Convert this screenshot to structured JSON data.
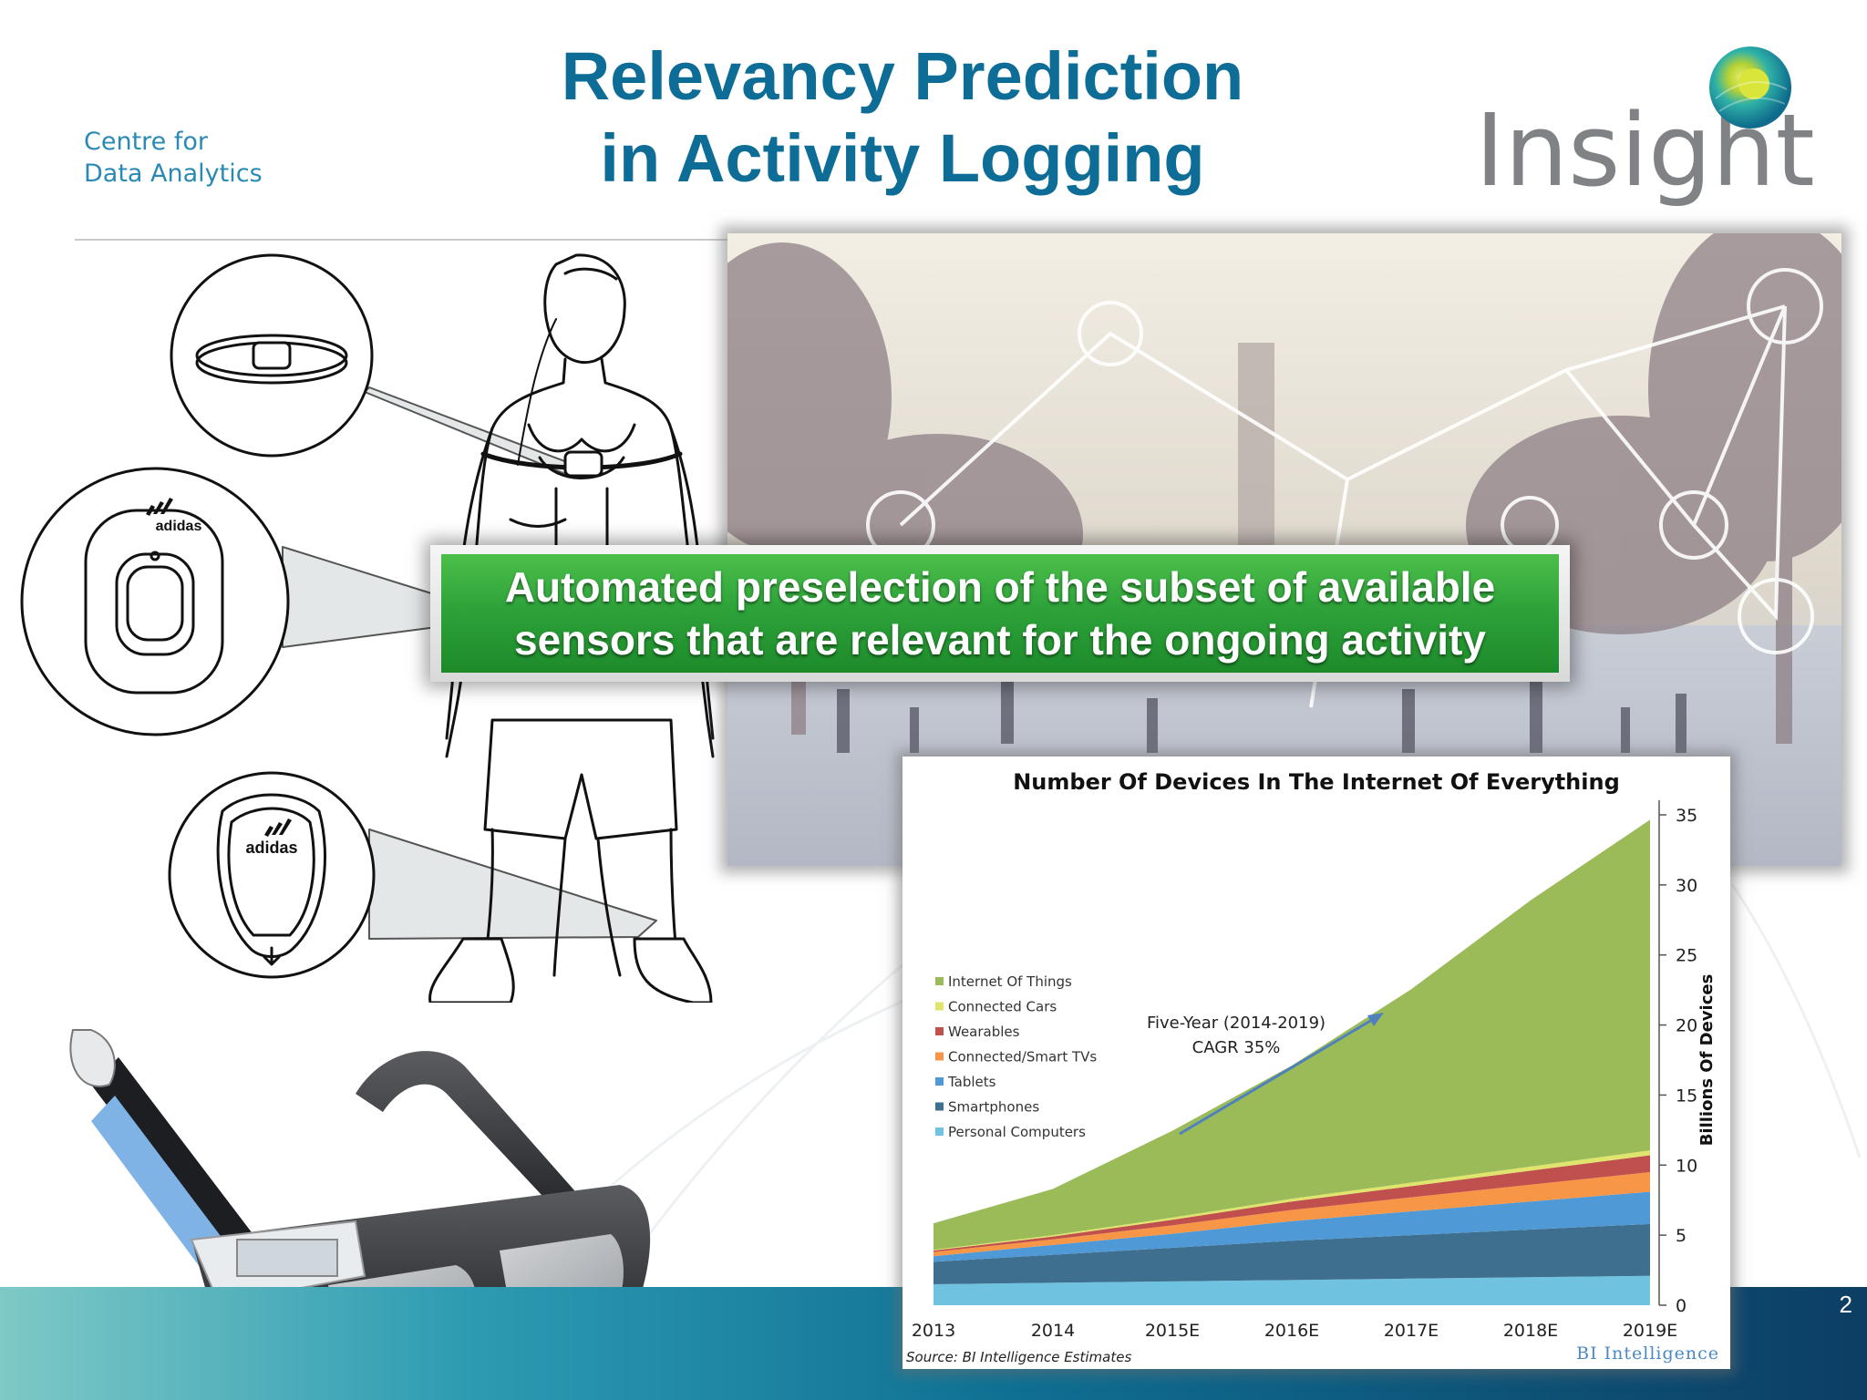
{
  "slide": {
    "title_line1": "Relevancy Prediction",
    "title_line2": "in Activity Logging",
    "page_number": "2"
  },
  "logos": {
    "centre_line1": "Centre for",
    "centre_line2": "Data Analytics",
    "insight": "Insight"
  },
  "callout": {
    "line1": "Automated preselection of the subset of available",
    "line2": "sensors that are relevant for the ongoing activity"
  },
  "figures": {
    "man_illustration": {
      "brand": "adidas"
    }
  },
  "colors": {
    "title": "#0e6d96",
    "callout_green": "#2ea33a",
    "series": [
      "#9bbb59",
      "#dfe46c",
      "#c0504d",
      "#f79646",
      "#4f9ad6",
      "#3e6f8e",
      "#6fc3e0"
    ]
  },
  "chart_data": {
    "type": "area",
    "stacked": true,
    "title": "Number Of Devices In The Internet Of Everything",
    "xlabel": "",
    "ylabel": "Billions Of Devices",
    "ylim": [
      0,
      35
    ],
    "yticks": [
      0,
      5,
      10,
      15,
      20,
      25,
      30,
      35
    ],
    "y_axis_side": "right",
    "categories": [
      "2013",
      "2014",
      "2015E",
      "2016E",
      "2017E",
      "2018E",
      "2019E"
    ],
    "series": [
      {
        "name": "Internet Of Things",
        "values": [
          1.9,
          3.3,
          6.2,
          9.5,
          13.8,
          19.0,
          23.6
        ]
      },
      {
        "name": "Connected Cars",
        "values": [
          0.05,
          0.1,
          0.15,
          0.2,
          0.25,
          0.3,
          0.35
        ]
      },
      {
        "name": "Wearables",
        "values": [
          0.1,
          0.2,
          0.4,
          0.6,
          0.8,
          1.0,
          1.2
        ]
      },
      {
        "name": "Connected/Smart TVs",
        "values": [
          0.3,
          0.4,
          0.6,
          0.8,
          1.0,
          1.2,
          1.4
        ]
      },
      {
        "name": "Tablets",
        "values": [
          0.4,
          0.7,
          1.0,
          1.4,
          1.7,
          2.0,
          2.3
        ]
      },
      {
        "name": "Smartphones",
        "values": [
          1.6,
          2.0,
          2.4,
          2.8,
          3.1,
          3.4,
          3.7
        ]
      },
      {
        "name": "Personal Computers",
        "values": [
          1.5,
          1.6,
          1.7,
          1.8,
          1.9,
          2.0,
          2.1
        ]
      }
    ],
    "legend_position": "center-left",
    "annotation": {
      "line1": "Five-Year (2014-2019)",
      "line2": "CAGR 35%"
    },
    "source": "Source: BI Intelligence Estimates",
    "brand": "BI Intelligence"
  }
}
